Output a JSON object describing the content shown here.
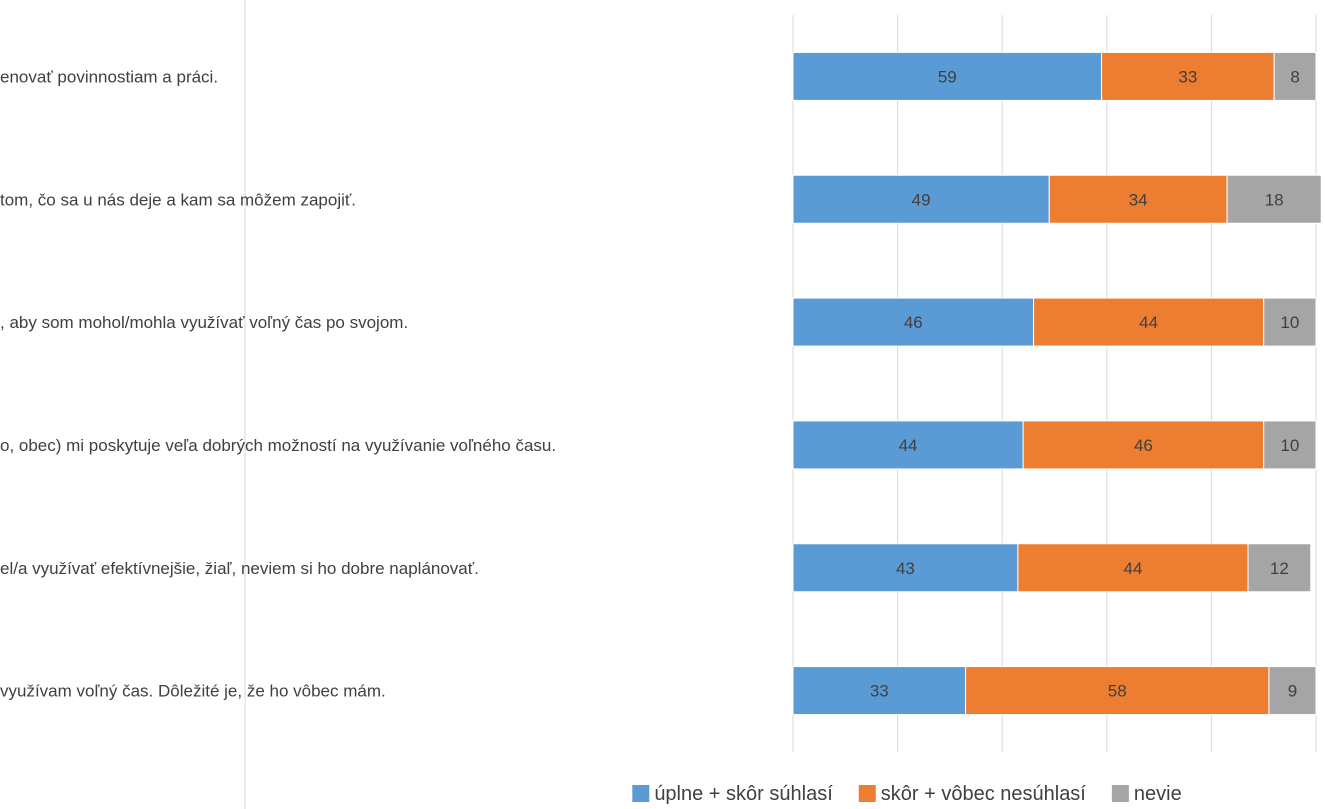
{
  "chart_data": {
    "type": "bar",
    "orientation": "horizontal",
    "stacked": true,
    "categories": [
      "enovať povinnostiam a práci.",
      "tom, čo sa u nás deje a kam sa môžem zapojiť.",
      ", aby som mohol/mohla využívať voľný čas po svojom.",
      "o, obec) mi poskytuje veľa dobrých možností na využívanie voľného času.",
      "el/a využívať efektívnejšie, žiaľ, neviem si ho dobre naplánovať.",
      "využívam voľný čas. Dôležité je, že ho vôbec mám."
    ],
    "series": [
      {
        "name": "úplne + skôr súhlasí",
        "color": "#5b9bd5",
        "values": [
          59,
          49,
          46,
          44,
          43,
          33
        ]
      },
      {
        "name": "skôr + vôbec nesúhlasí",
        "color": "#ed7d31",
        "values": [
          33,
          34,
          44,
          46,
          44,
          58
        ]
      },
      {
        "name": "nevie",
        "color": "#a5a5a5",
        "values": [
          8,
          18,
          10,
          10,
          12,
          9
        ]
      }
    ],
    "xlim": [
      0,
      100
    ],
    "grid": true,
    "legend_position": "bottom",
    "title": "",
    "xlabel": "",
    "ylabel": ""
  }
}
